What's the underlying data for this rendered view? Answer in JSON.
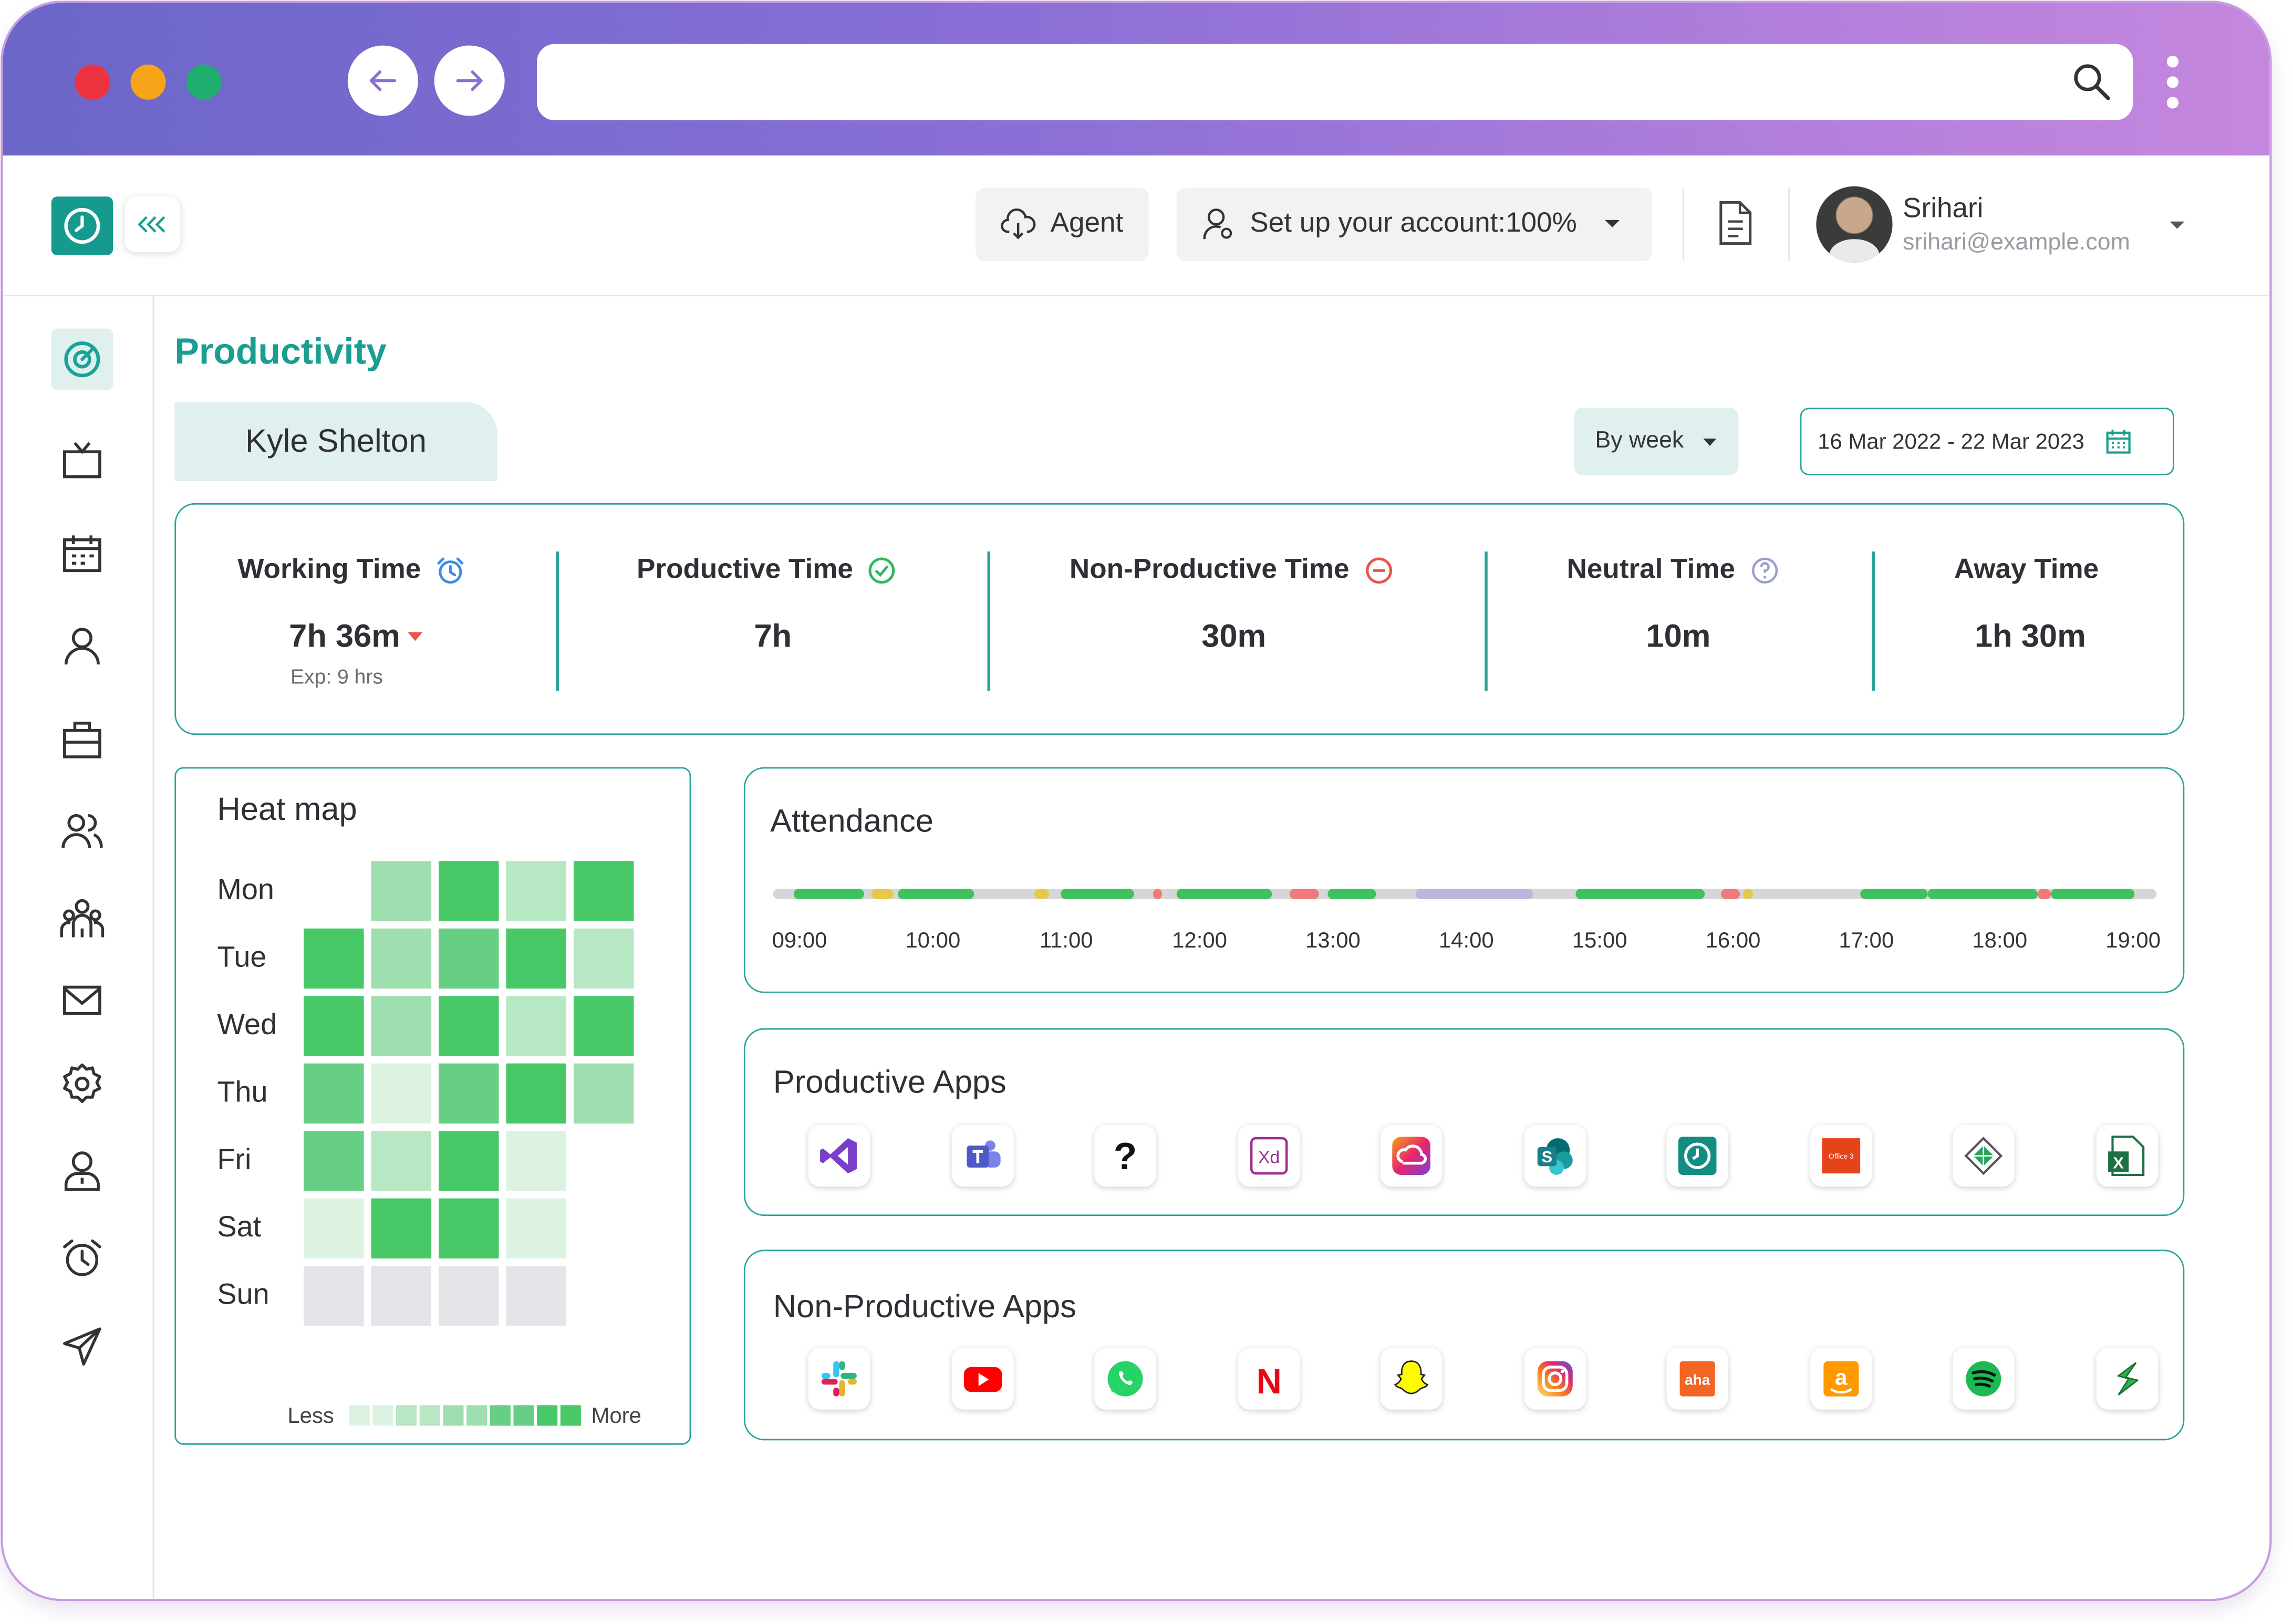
{
  "browser": {
    "traffic_lights": [
      "#ee3340",
      "#f6a519",
      "#1fae6e"
    ]
  },
  "header": {
    "agent_label": "Agent",
    "setup_label": "Set up your account:100%",
    "user": {
      "name": "Srihari",
      "email": "srihari@example.com"
    }
  },
  "sidebar": {
    "items": [
      "target-icon",
      "tv-icon",
      "calendar-icon",
      "user-icon",
      "briefcase-icon",
      "users-icon",
      "team-icon",
      "mail-icon",
      "gear-icon",
      "user-badge-icon",
      "alarm-icon",
      "send-icon"
    ],
    "active": 0
  },
  "page": {
    "title": "Productivity",
    "employee": "Kyle Shelton",
    "period_select": "By week",
    "date_range": "16 Mar 2022 - 22 Mar 2023"
  },
  "stats": [
    {
      "title": "Working Time",
      "value": "7h 36m",
      "sub": "Exp: 9 hrs",
      "icon": "alarm-clock-icon",
      "color": "#3a8ee6"
    },
    {
      "title": "Productive Time",
      "value": "7h",
      "icon": "check-circle-icon",
      "color": "#30b85c"
    },
    {
      "title": "Non-Productive Time",
      "value": "30m",
      "icon": "minus-circle-icon",
      "color": "#e8534a"
    },
    {
      "title": "Neutral Time",
      "value": "10m",
      "icon": "question-circle-icon",
      "color": "#9aa0c8"
    },
    {
      "title": "Away Time",
      "value": "1h 30m"
    }
  ],
  "heatmap": {
    "title": "Heat map",
    "days": [
      "Mon",
      "Tue",
      "Wed",
      "Thu",
      "Fri",
      "Sat",
      "Sun"
    ],
    "levels": [
      [
        null,
        3,
        5,
        2,
        5
      ],
      [
        5,
        3,
        4,
        5,
        2
      ],
      [
        5,
        3,
        5,
        2,
        5
      ],
      [
        4,
        1,
        4,
        5,
        3
      ],
      [
        4,
        2,
        5,
        1,
        null
      ],
      [
        1,
        5,
        5,
        1,
        null
      ],
      [
        0,
        0,
        0,
        0,
        null
      ]
    ],
    "palette": [
      "#e3e5e8",
      "#ddf3e2",
      "#b7e7c3",
      "#9fdfaf",
      "#66cf84",
      "#49c868"
    ],
    "legend_less": "Less",
    "legend_more": "More"
  },
  "attendance": {
    "title": "Attendance",
    "ticks": [
      "09:00",
      "10:00",
      "11:00",
      "12:00",
      "13:00",
      "14:00",
      "15:00",
      "16:00",
      "17:00",
      "18:00",
      "19:00"
    ],
    "segments": [
      {
        "start": "09:00",
        "end": "09:32",
        "status": "productive"
      },
      {
        "start": "09:35",
        "end": "09:45",
        "status": "neutral-yellow"
      },
      {
        "start": "09:47",
        "end": "10:21",
        "status": "productive"
      },
      {
        "start": "10:48",
        "end": "10:55",
        "status": "neutral-yellow"
      },
      {
        "start": "11:00",
        "end": "11:33",
        "status": "productive"
      },
      {
        "start": "11:42",
        "end": "11:46",
        "status": "non-productive"
      },
      {
        "start": "11:52",
        "end": "12:35",
        "status": "productive"
      },
      {
        "start": "12:43",
        "end": "12:56",
        "status": "non-productive"
      },
      {
        "start": "13:00",
        "end": "13:22",
        "status": "productive"
      },
      {
        "start": "13:40",
        "end": "14:33",
        "status": "away"
      },
      {
        "start": "14:52",
        "end": "15:50",
        "status": "productive"
      },
      {
        "start": "15:57",
        "end": "16:06",
        "status": "non-productive"
      },
      {
        "start": "16:07",
        "end": "16:12",
        "status": "neutral-yellow"
      },
      {
        "start": "17:00",
        "end": "17:30",
        "status": "productive"
      },
      {
        "start": "17:30",
        "end": "18:20",
        "status": "productive"
      },
      {
        "start": "18:20",
        "end": "18:26",
        "status": "non-productive"
      },
      {
        "start": "18:26",
        "end": "19:03",
        "status": "productive"
      }
    ],
    "colors": {
      "productive": "#3ec15e",
      "neutral-yellow": "#e6c84a",
      "non-productive": "#f07a7a",
      "away": "#b9b8dc"
    }
  },
  "productive_apps": {
    "title": "Productive Apps",
    "apps": [
      {
        "name": "visual-studio-icon",
        "color": "#7a3fc8"
      },
      {
        "name": "teams-icon",
        "color": "#5059c9"
      },
      {
        "name": "help-icon",
        "color": "#111111"
      },
      {
        "name": "adobe-xd-icon",
        "color": "#a12d92",
        "label": "Xd"
      },
      {
        "name": "creative-cloud-icon",
        "color": "#e8256a"
      },
      {
        "name": "sharepoint-icon",
        "color": "#1a7f88"
      },
      {
        "name": "timetracker-icon",
        "color": "#138d82"
      },
      {
        "name": "office365-icon",
        "color": "#e6431b",
        "label": "Office 3"
      },
      {
        "name": "crystal-icon",
        "color": "#2aa35a"
      },
      {
        "name": "excel-icon",
        "color": "#1e7145",
        "label": "X"
      }
    ]
  },
  "nonproductive_apps": {
    "title": "Non-Productive Apps",
    "apps": [
      {
        "name": "slack-icon",
        "color": "#e01e5a"
      },
      {
        "name": "youtube-icon",
        "color": "#ff0000"
      },
      {
        "name": "whatsapp-icon",
        "color": "#25d366"
      },
      {
        "name": "netflix-icon",
        "color": "#e50914",
        "label": "N"
      },
      {
        "name": "snapchat-icon",
        "color": "#fffc00"
      },
      {
        "name": "instagram-icon",
        "color": "#d62976"
      },
      {
        "name": "aha-icon",
        "color": "#f26522",
        "label": "aha"
      },
      {
        "name": "amazon-icon",
        "color": "#ff9900",
        "label": "a"
      },
      {
        "name": "spotify-icon",
        "color": "#1db954"
      },
      {
        "name": "swarm-icon",
        "color": "#2fb14a",
        "label": "S"
      }
    ]
  }
}
